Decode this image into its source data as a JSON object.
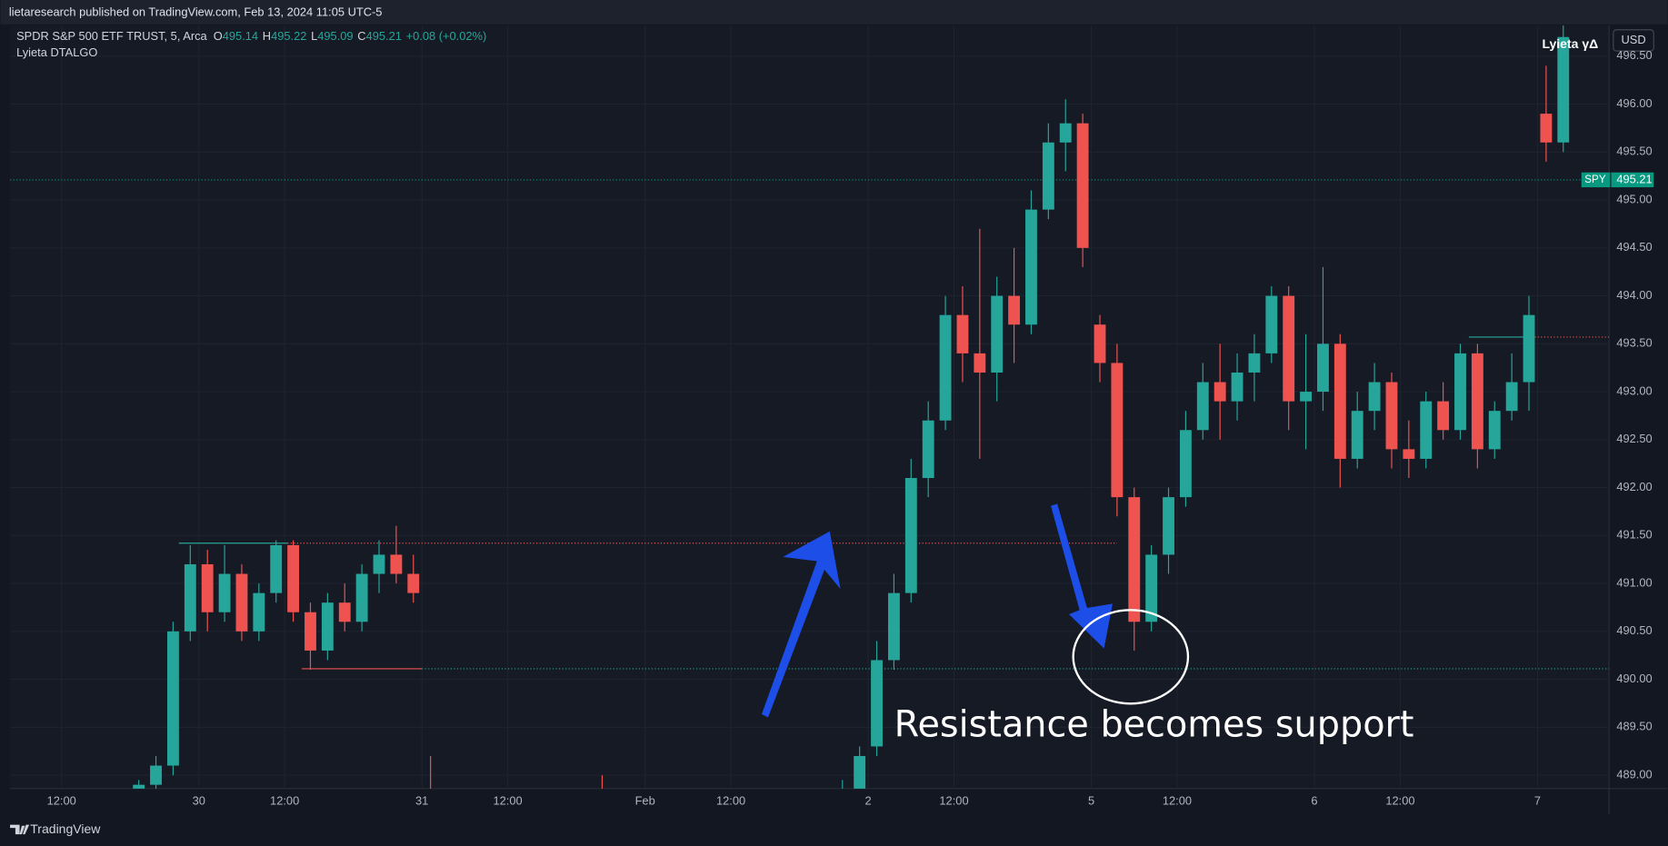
{
  "header": {
    "text": "lietaresearch published on TradingView.com, Feb 13, 2024 11:05 UTC-5"
  },
  "legend": {
    "symbol_line": "SPDR S&P 500 ETF TRUST, 5, Arca",
    "ohlc": [
      {
        "label": "O",
        "value": 495.14
      },
      {
        "label": "H",
        "value": 495.22
      },
      {
        "label": "L",
        "value": 495.09
      },
      {
        "label": "C",
        "value": 495.21
      }
    ],
    "change": "+0.08 (+0.02%)",
    "indicator": "Lyieta DTALGO"
  },
  "top_right": {
    "indicator": "Lyieta γΔ",
    "currency": "USD"
  },
  "footer": {
    "brand": "TradingView"
  },
  "chart_data": {
    "type": "candlestick",
    "up_color": "#26a69a",
    "down_color": "#ef5350",
    "grid": true,
    "x": [
      57,
      63,
      69,
      75,
      81,
      87,
      93,
      99,
      105,
      111,
      117,
      123,
      129,
      135,
      141,
      147,
      153,
      159,
      219,
      303,
      309,
      315,
      321,
      327,
      333,
      339,
      345,
      351,
      357,
      363,
      369,
      375,
      381,
      387,
      393,
      399,
      405,
      411,
      417,
      423,
      429,
      435,
      441,
      447,
      453,
      459,
      465,
      471,
      477,
      483,
      489,
      495,
      501,
      507,
      513,
      519,
      525,
      531,
      537,
      543,
      549,
      555
    ],
    "open": [
      488.6,
      488.9,
      489.1,
      490.5,
      491.2,
      490.7,
      491.1,
      490.5,
      490.9,
      491.4,
      490.7,
      490.3,
      490.8,
      490.6,
      491.1,
      491.3,
      491.1,
      488.5,
      488.6,
      488.5,
      488.8,
      489.3,
      490.2,
      490.9,
      492.1,
      492.7,
      493.8,
      493.4,
      493.2,
      494.0,
      493.7,
      494.9,
      495.6,
      495.8,
      493.7,
      493.3,
      491.9,
      490.6,
      491.3,
      491.9,
      492.6,
      493.1,
      492.9,
      493.2,
      493.4,
      494.0,
      492.9,
      493.0,
      493.5,
      492.3,
      492.8,
      493.1,
      492.4,
      492.3,
      492.9,
      492.6,
      493.4,
      492.4,
      492.8,
      493.1,
      495.9,
      495.6
    ],
    "high": [
      488.95,
      489.2,
      490.6,
      491.4,
      491.35,
      491.4,
      491.2,
      491.0,
      491.45,
      491.45,
      490.8,
      490.9,
      491.0,
      491.2,
      491.45,
      491.6,
      491.3,
      489.2,
      489.0,
      488.95,
      489.3,
      490.4,
      491.1,
      492.3,
      492.9,
      494.0,
      494.1,
      494.7,
      494.2,
      494.5,
      495.1,
      495.8,
      496.05,
      495.9,
      493.8,
      493.5,
      492.0,
      491.4,
      492.0,
      492.8,
      493.3,
      493.5,
      493.4,
      493.6,
      494.1,
      494.1,
      493.6,
      494.3,
      493.6,
      493.0,
      493.3,
      493.2,
      492.7,
      493.0,
      493.1,
      493.5,
      493.5,
      492.9,
      493.4,
      494.0,
      496.4,
      496.85
    ],
    "low": [
      488.5,
      488.8,
      489.0,
      490.4,
      490.5,
      490.6,
      490.4,
      490.4,
      490.8,
      490.6,
      490.1,
      490.2,
      490.5,
      490.5,
      490.9,
      491.0,
      490.8,
      488.0,
      488.3,
      488.3,
      488.6,
      489.2,
      490.1,
      490.8,
      491.9,
      492.6,
      493.1,
      492.3,
      492.9,
      493.3,
      493.6,
      494.8,
      495.3,
      494.3,
      493.1,
      491.7,
      490.3,
      490.5,
      491.1,
      491.8,
      492.5,
      492.5,
      492.7,
      492.9,
      493.3,
      492.6,
      492.4,
      492.8,
      492.0,
      492.2,
      492.6,
      492.2,
      492.1,
      492.2,
      492.5,
      492.5,
      492.2,
      492.3,
      492.7,
      492.8,
      495.4,
      495.5
    ],
    "close": [
      488.9,
      489.1,
      490.5,
      491.2,
      490.7,
      491.1,
      490.5,
      490.9,
      491.4,
      490.7,
      490.3,
      490.8,
      490.6,
      491.1,
      491.3,
      491.1,
      490.9,
      488.4,
      488.5,
      488.8,
      489.2,
      490.2,
      490.9,
      492.1,
      492.7,
      493.8,
      493.4,
      493.2,
      494.0,
      493.7,
      494.9,
      495.6,
      495.8,
      494.5,
      493.3,
      491.9,
      490.6,
      491.3,
      491.9,
      492.6,
      493.1,
      492.9,
      493.2,
      493.4,
      494.0,
      492.9,
      493.0,
      493.5,
      492.3,
      492.8,
      493.1,
      492.4,
      492.3,
      492.9,
      492.6,
      493.4,
      492.4,
      492.8,
      493.1,
      493.8,
      495.6,
      496.7
    ],
    "xlim": [
      12,
      571
    ],
    "ylim": [
      488.86,
      496.82
    ],
    "xticks": [
      {
        "value": 30,
        "label": "12:00"
      },
      {
        "value": 78,
        "label": "30"
      },
      {
        "value": 108,
        "label": "12:00"
      },
      {
        "value": 156,
        "label": "31"
      },
      {
        "value": 186,
        "label": "12:00"
      },
      {
        "value": 234,
        "label": "Feb"
      },
      {
        "value": 264,
        "label": "12:00"
      },
      {
        "value": 312,
        "label": "2"
      },
      {
        "value": 342,
        "label": "12:00"
      },
      {
        "value": 390,
        "label": "5"
      },
      {
        "value": 420,
        "label": "12:00"
      },
      {
        "value": 468,
        "label": "6"
      },
      {
        "value": 498,
        "label": "12:00"
      },
      {
        "value": 546,
        "label": "7"
      }
    ],
    "yticks": [
      {
        "value": 489,
        "label": "489.00"
      },
      {
        "value": 489.5,
        "label": "489.50"
      },
      {
        "value": 490,
        "label": "490.00"
      },
      {
        "value": 490.5,
        "label": "490.50"
      },
      {
        "value": 491,
        "label": "491.00"
      },
      {
        "value": 491.5,
        "label": "491.50"
      },
      {
        "value": 492,
        "label": "492.00"
      },
      {
        "value": 492.5,
        "label": "492.50"
      },
      {
        "value": 493,
        "label": "493.00"
      },
      {
        "value": 493.5,
        "label": "493.50"
      },
      {
        "value": 494,
        "label": "494.00"
      },
      {
        "value": 494.5,
        "label": "494.50"
      },
      {
        "value": 495,
        "label": "495.00"
      },
      {
        "value": 495.5,
        "label": "495.50"
      },
      {
        "value": 496,
        "label": "496.00"
      },
      {
        "value": 496.5,
        "label": "496.50"
      }
    ],
    "levels": [
      {
        "price": 491.42,
        "x": [
          71,
          109
        ],
        "color": "#26a69a",
        "style": "solid"
      },
      {
        "price": 491.42,
        "x": [
          109,
          399
        ],
        "color": "#ef5350",
        "style": "dotted"
      },
      {
        "price": 490.11,
        "x": [
          114,
          156
        ],
        "color": "#ef5350",
        "style": "solid"
      },
      {
        "price": 490.11,
        "x": [
          156,
          571
        ],
        "color": "#26a69a",
        "style": "dotted"
      },
      {
        "price": 493.57,
        "x": [
          522,
          545
        ],
        "color": "#26a69a",
        "style": "solid"
      },
      {
        "price": 493.57,
        "x": [
          545,
          571
        ],
        "color": "#ef5350",
        "style": "dotted"
      }
    ],
    "symbol": "SPY",
    "last_price": 495.21,
    "last_color": "#089981",
    "annotation": "Resistance becomes support"
  }
}
